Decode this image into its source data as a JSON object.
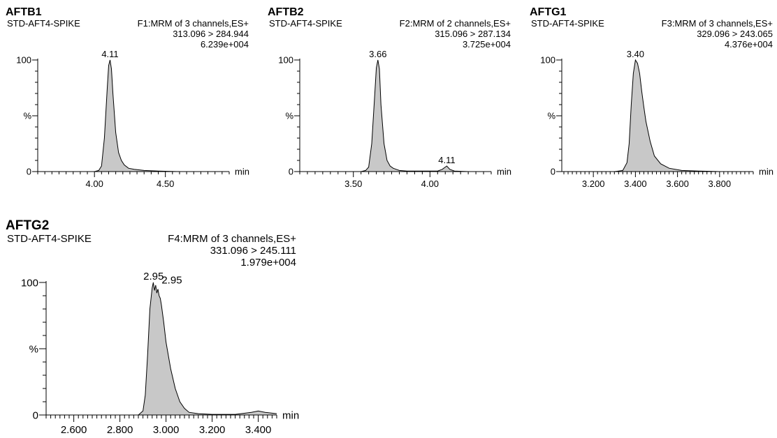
{
  "chart_data": [
    {
      "type": "area",
      "title": "AFTB1",
      "sample": "STD-AFT4-SPIKE",
      "function": "F1:MRM of 3 channels,ES+",
      "transition": "313.096 > 284.944",
      "intensity": "6.239e+004",
      "xlabel": "min",
      "yticks": [
        "0",
        "%",
        "100"
      ],
      "xlim": [
        3.6,
        4.95
      ],
      "ylim": [
        0,
        100
      ],
      "xticks": [
        4.0,
        4.5
      ],
      "xtick_labels": [
        "4.00",
        "4.50"
      ],
      "minor_step": 0.05,
      "peak_labels": [
        {
          "text": "4.11",
          "x": 4.11,
          "y": 100
        }
      ],
      "x": [
        3.6,
        3.7,
        3.8,
        3.9,
        3.95,
        4.0,
        4.03,
        4.05,
        4.07,
        4.09,
        4.1,
        4.11,
        4.12,
        4.13,
        4.15,
        4.17,
        4.19,
        4.21,
        4.24,
        4.28,
        4.35,
        4.45,
        4.6,
        4.8,
        4.95
      ],
      "y": [
        0,
        0,
        0,
        0,
        0,
        0,
        1,
        5,
        30,
        75,
        95,
        100,
        92,
        70,
        35,
        17,
        10,
        6,
        3,
        2,
        1,
        0.5,
        0,
        0,
        0
      ]
    },
    {
      "type": "area",
      "title": "AFTB2",
      "sample": "STD-AFT4-SPIKE",
      "function": "F2:MRM of 2 channels,ES+",
      "transition": "315.096 > 287.134",
      "intensity": "3.725e+004",
      "xlabel": "min",
      "yticks": [
        "0",
        "%",
        "100"
      ],
      "xlim": [
        3.15,
        4.4
      ],
      "ylim": [
        0,
        100
      ],
      "xticks": [
        3.5,
        4.0
      ],
      "xtick_labels": [
        "3.50",
        "4.00"
      ],
      "minor_step": 0.05,
      "peak_labels": [
        {
          "text": "3.66",
          "x": 3.66,
          "y": 100
        },
        {
          "text": "4.11",
          "x": 4.11,
          "y": 5
        }
      ],
      "x": [
        3.15,
        3.3,
        3.5,
        3.55,
        3.58,
        3.6,
        3.62,
        3.64,
        3.65,
        3.66,
        3.67,
        3.68,
        3.7,
        3.72,
        3.74,
        3.76,
        3.78,
        3.8,
        3.85,
        3.95,
        4.05,
        4.08,
        4.1,
        4.11,
        4.13,
        4.16,
        4.25,
        4.4
      ],
      "y": [
        0,
        0,
        0,
        0,
        1,
        4,
        25,
        70,
        93,
        100,
        92,
        60,
        25,
        10,
        5,
        3,
        2,
        1,
        0.5,
        0.5,
        0.5,
        2,
        4,
        5,
        2,
        0.5,
        0,
        0
      ]
    },
    {
      "type": "area",
      "title": "AFTG1",
      "sample": "STD-AFT4-SPIKE",
      "function": "F3:MRM of 3 channels,ES+",
      "transition": "329.096 > 243.065",
      "intensity": "4.376e+004",
      "xlabel": "min",
      "yticks": [
        "0",
        "%",
        "100"
      ],
      "xlim": [
        3.05,
        3.96
      ],
      "ylim": [
        0,
        100
      ],
      "xticks": [
        3.2,
        3.4,
        3.6,
        3.8
      ],
      "xtick_labels": [
        "3.200",
        "3.400",
        "3.600",
        "3.800"
      ],
      "minor_step": 0.02,
      "peak_labels": [
        {
          "text": "3.40",
          "x": 3.4,
          "y": 100
        }
      ],
      "x": [
        3.05,
        3.2,
        3.3,
        3.34,
        3.36,
        3.37,
        3.38,
        3.39,
        3.4,
        3.41,
        3.42,
        3.43,
        3.44,
        3.45,
        3.47,
        3.49,
        3.52,
        3.56,
        3.62,
        3.7,
        3.8,
        3.96
      ],
      "y": [
        0,
        0,
        0,
        1,
        8,
        25,
        60,
        88,
        100,
        97,
        88,
        72,
        58,
        45,
        27,
        14,
        7,
        3,
        1,
        0.5,
        0,
        0
      ]
    },
    {
      "type": "area",
      "title": "AFTG2",
      "sample": "STD-AFT4-SPIKE",
      "function": "F4:MRM of 3 channels,ES+",
      "transition": "331.096 > 245.111",
      "intensity": "1.979e+004",
      "xlabel": "min",
      "yticks": [
        "0",
        "%",
        "100"
      ],
      "xlim": [
        2.48,
        3.48
      ],
      "ylim": [
        0,
        100
      ],
      "xticks": [
        2.6,
        2.8,
        3.0,
        3.2,
        3.4
      ],
      "xtick_labels": [
        "2.600",
        "2.800",
        "3.000",
        "3.200",
        "3.400"
      ],
      "minor_step": 0.02,
      "peak_labels": [
        {
          "text": "2.95",
          "x": 2.946,
          "y": 100
        },
        {
          "text": "2.95",
          "x": 2.975,
          "y": 97
        }
      ],
      "x": [
        2.48,
        2.6,
        2.8,
        2.88,
        2.9,
        2.91,
        2.92,
        2.93,
        2.94,
        2.945,
        2.95,
        2.955,
        2.96,
        2.965,
        2.97,
        2.975,
        2.98,
        2.99,
        3.0,
        3.02,
        3.04,
        3.06,
        3.08,
        3.1,
        3.14,
        3.2,
        3.3,
        3.37,
        3.4,
        3.43,
        3.48
      ],
      "y": [
        0,
        0,
        0,
        0,
        3,
        15,
        45,
        80,
        96,
        100,
        94,
        98,
        92,
        95,
        90,
        88,
        83,
        70,
        55,
        35,
        20,
        10,
        5,
        2,
        1,
        0.5,
        0.5,
        2,
        3,
        2,
        1
      ]
    }
  ]
}
